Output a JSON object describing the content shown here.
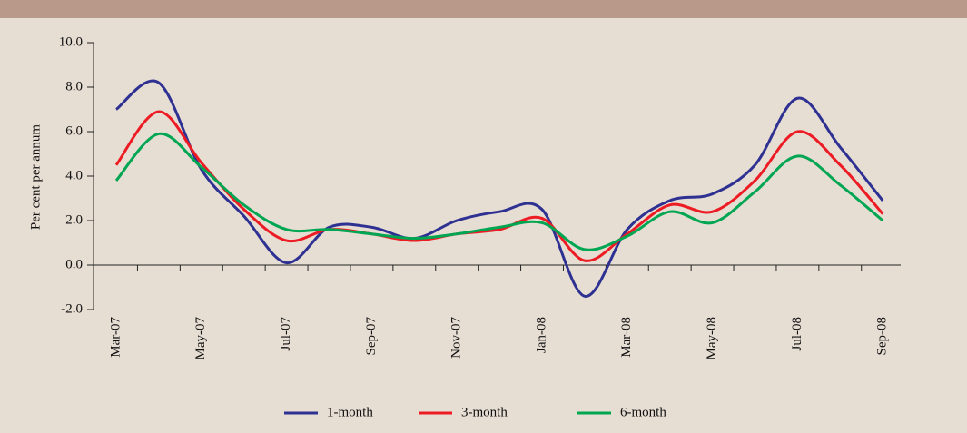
{
  "chart_data": {
    "type": "line",
    "y_label": "Per cent per annum",
    "categories": [
      "Mar-07",
      null,
      "May-07",
      null,
      "Jul-07",
      null,
      "Sep-07",
      null,
      "Nov-07",
      null,
      "Jan-08",
      null,
      "Mar-08",
      null,
      "May-08",
      null,
      "Jul-08",
      null,
      "Sep-08"
    ],
    "series": [
      {
        "name": "1-month",
        "color": "#2e3192",
        "values": [
          7.0,
          8.2,
          4.3,
          2.2,
          0.1,
          1.7,
          1.7,
          1.2,
          2.0,
          2.4,
          2.5,
          -1.4,
          1.6,
          2.9,
          3.2,
          4.5,
          7.5,
          5.3,
          2.9
        ]
      },
      {
        "name": "3-month",
        "color": "#ed1c24",
        "values": [
          4.5,
          6.9,
          4.6,
          2.5,
          1.1,
          1.6,
          1.4,
          1.1,
          1.4,
          1.6,
          2.1,
          0.2,
          1.4,
          2.7,
          2.4,
          3.8,
          6.0,
          4.5,
          2.3
        ]
      },
      {
        "name": "6-month",
        "color": "#00a651",
        "values": [
          3.8,
          5.9,
          4.4,
          2.7,
          1.6,
          1.6,
          1.4,
          1.2,
          1.4,
          1.7,
          1.9,
          0.7,
          1.3,
          2.4,
          1.9,
          3.3,
          4.9,
          3.6,
          2.0
        ]
      }
    ],
    "ylim": [
      -2,
      10
    ],
    "yticks": [
      {
        "value": -2,
        "label": "-2.0"
      },
      {
        "value": 0,
        "label": "0.0"
      },
      {
        "value": 2,
        "label": "2.0"
      },
      {
        "value": 4,
        "label": "4.0"
      },
      {
        "value": 6,
        "label": "6.0"
      },
      {
        "value": 8,
        "label": "8.0"
      },
      {
        "value": 10,
        "label": "10.0"
      }
    ],
    "legend": "bottom"
  }
}
